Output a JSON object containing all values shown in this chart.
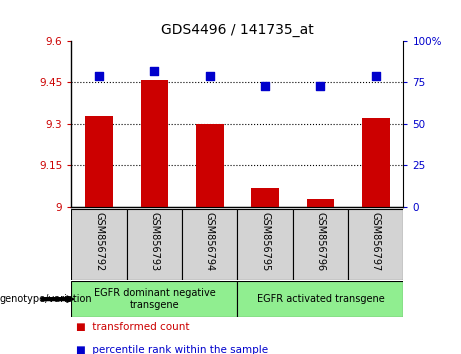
{
  "title": "GDS4496 / 141735_at",
  "samples": [
    "GSM856792",
    "GSM856793",
    "GSM856794",
    "GSM856795",
    "GSM856796",
    "GSM856797"
  ],
  "red_values": [
    9.33,
    9.46,
    9.3,
    9.07,
    9.03,
    9.32
  ],
  "blue_values": [
    79,
    82,
    79,
    73,
    73,
    79
  ],
  "ylim_left": [
    9.0,
    9.6
  ],
  "ylim_right": [
    0,
    100
  ],
  "yticks_left": [
    9.0,
    9.15,
    9.3,
    9.45,
    9.6
  ],
  "yticks_right": [
    0,
    25,
    50,
    75,
    100
  ],
  "ytick_labels_left": [
    "9",
    "9.15",
    "9.3",
    "9.45",
    "9.6"
  ],
  "ytick_labels_right": [
    "0",
    "25",
    "50",
    "75",
    "100%"
  ],
  "hlines": [
    9.15,
    9.3,
    9.45
  ],
  "group1_label": "EGFR dominant negative\ntransgene",
  "group2_label": "EGFR activated transgene",
  "legend_red": "transformed count",
  "legend_blue": "percentile rank within the sample",
  "bar_color": "#cc0000",
  "dot_color": "#0000cc",
  "group_label_color": "#90EE90",
  "sample_box_color": "#d3d3d3",
  "bar_width": 0.5,
  "dot_size": 30,
  "title_fontsize": 10,
  "tick_fontsize": 7.5,
  "sample_fontsize": 7,
  "group_fontsize": 7,
  "legend_fontsize": 7.5
}
